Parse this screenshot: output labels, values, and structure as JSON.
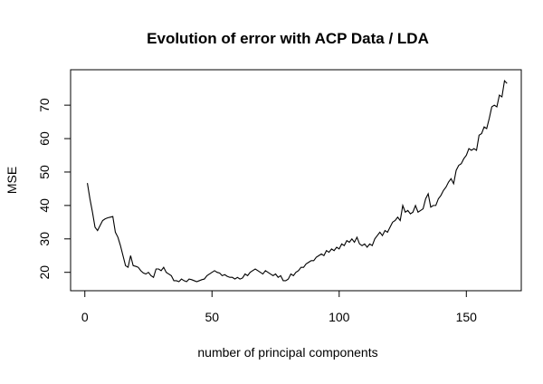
{
  "chart_data": {
    "type": "line",
    "title": "Evolution of error with ACP Data / LDA",
    "x_label": "number of principal components",
    "y_label": "MSE",
    "x": [
      1,
      2,
      3,
      4,
      5,
      6,
      7,
      8,
      9,
      10,
      11,
      12,
      13,
      14,
      15,
      16,
      17,
      18,
      19,
      20,
      21,
      22,
      23,
      24,
      25,
      26,
      27,
      28,
      29,
      30,
      31,
      32,
      33,
      34,
      35,
      36,
      37,
      38,
      39,
      40,
      41,
      42,
      43,
      44,
      45,
      46,
      47,
      48,
      49,
      50,
      51,
      52,
      53,
      54,
      55,
      56,
      57,
      58,
      59,
      60,
      61,
      62,
      63,
      64,
      65,
      66,
      67,
      68,
      69,
      70,
      71,
      72,
      73,
      74,
      75,
      76,
      77,
      78,
      79,
      80,
      81,
      82,
      83,
      84,
      85,
      86,
      87,
      88,
      89,
      90,
      91,
      92,
      93,
      94,
      95,
      96,
      97,
      98,
      99,
      100,
      101,
      102,
      103,
      104,
      105,
      106,
      107,
      108,
      109,
      110,
      111,
      112,
      113,
      114,
      115,
      116,
      117,
      118,
      119,
      120,
      121,
      122,
      123,
      124,
      125,
      126,
      127,
      128,
      129,
      130,
      131,
      132,
      133,
      134,
      135,
      136,
      137,
      138,
      139,
      140,
      141,
      142,
      143,
      144,
      145,
      146,
      147,
      148,
      149,
      150,
      151,
      152,
      153,
      154,
      155,
      156,
      157,
      158,
      159,
      160,
      161,
      162,
      163,
      164,
      165,
      166
    ],
    "series": [
      {
        "name": "MSE",
        "color": "#000000",
        "values": [
          46.7,
          42,
          38,
          33.5,
          32.5,
          34,
          35.5,
          36,
          36.3,
          36.5,
          36.7,
          32,
          30.5,
          28,
          25,
          22,
          21.5,
          25,
          22,
          21.8,
          21.5,
          20.5,
          19.8,
          19.5,
          20,
          19,
          18.5,
          21,
          21,
          20.5,
          21.5,
          20,
          19.5,
          19,
          17.5,
          17.5,
          17.2,
          18,
          17.5,
          17.2,
          18,
          17.8,
          17.5,
          17.2,
          17.5,
          17.8,
          18,
          19,
          19.5,
          20,
          20.5,
          20,
          19.8,
          19,
          19.3,
          18.8,
          18.5,
          18.5,
          18,
          18.5,
          18,
          18.3,
          19.5,
          19,
          20,
          20.5,
          21,
          20.5,
          20,
          19.5,
          20.5,
          20,
          19.5,
          19,
          19.5,
          18.5,
          19,
          17.5,
          17.5,
          18,
          19.5,
          19,
          20,
          20.5,
          21.5,
          21.5,
          22.5,
          23,
          23.5,
          23.5,
          24.5,
          25,
          25.5,
          25,
          26.5,
          26,
          27,
          26.5,
          27.5,
          27,
          28.5,
          28,
          29.5,
          29,
          30,
          29,
          30.5,
          28.5,
          28,
          28.5,
          27.5,
          28.5,
          28,
          30,
          31,
          32,
          31,
          32.5,
          32,
          33.5,
          35,
          35.5,
          36.5,
          35.5,
          40,
          38,
          38.5,
          37.5,
          38,
          40,
          38,
          38.5,
          39,
          42,
          43.5,
          39.5,
          40,
          40,
          42,
          43,
          44.5,
          45.5,
          47,
          48,
          46.5,
          50.5,
          52,
          52.5,
          54,
          55,
          57,
          56.5,
          57,
          56.5,
          61,
          61.5,
          63.5,
          63,
          66,
          69.5,
          70,
          69.5,
          73,
          72.5,
          77.3,
          76.5
        ]
      }
    ],
    "xlim": [
      -5.6,
      171.6
    ],
    "xticks": [
      0,
      50,
      100,
      150
    ],
    "ylim": [
      14.5,
      80.6
    ],
    "yticks": [
      20,
      30,
      40,
      50,
      60,
      70
    ]
  }
}
